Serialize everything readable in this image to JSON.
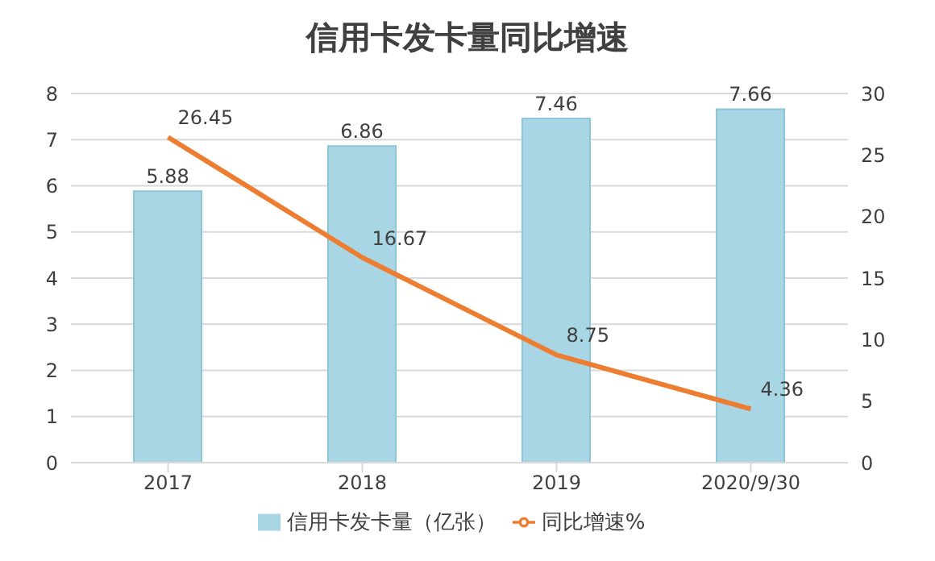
{
  "chart_data": {
    "type": "bar",
    "title": "信用卡发卡量同比增速",
    "categories": [
      "2017",
      "2018",
      "2019",
      "2020/9/30"
    ],
    "series": [
      {
        "name": "信用卡发卡量（亿张）",
        "color": "#a9d6e5",
        "values": [
          5.88,
          6.86,
          7.46,
          7.66
        ]
      },
      {
        "name": "同比增速%",
        "type": "line",
        "axis": "y2",
        "color": "#ed7d31",
        "values": [
          26.45,
          16.67,
          8.75,
          4.36
        ]
      }
    ],
    "ylim": [
      0,
      8
    ],
    "yticks": [
      0,
      1,
      2,
      3,
      4,
      5,
      6,
      7,
      8
    ],
    "y2lim": [
      0,
      30
    ],
    "y2ticks": [
      0,
      5,
      10,
      15,
      20,
      25,
      30
    ],
    "grid": "y",
    "legend": "bottom",
    "data_labels": true,
    "marker": "none"
  }
}
